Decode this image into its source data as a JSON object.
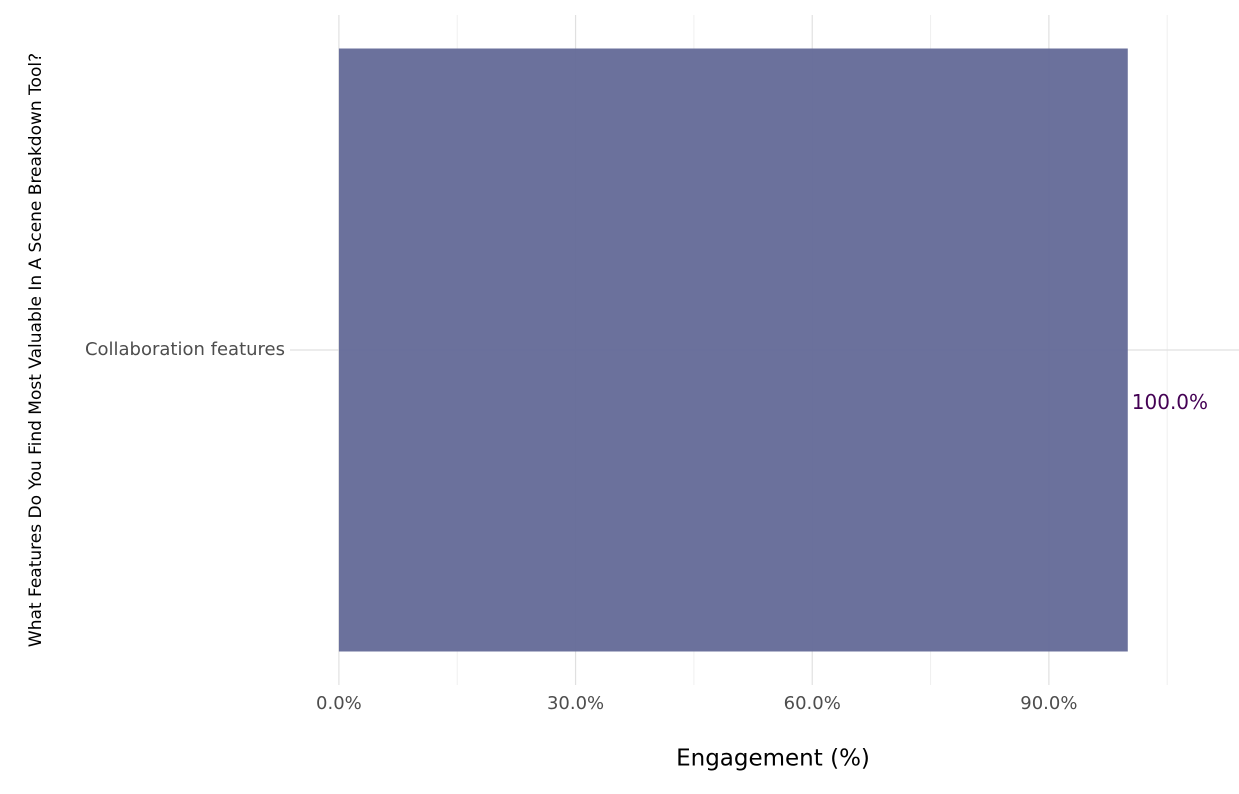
{
  "chart_data": {
    "type": "hbar",
    "xlabel": "Engagement (%)",
    "ylabel": "What Features Do You Find Most Valuable In A Scene Breakdown Tool?",
    "categories": [
      "Collaboration features"
    ],
    "values": [
      100
    ],
    "value_labels": [
      "100.0%"
    ],
    "color": "#666c99",
    "value_label_color": "#440154",
    "xlim": [
      -6.2,
      114.1
    ],
    "xticks": [
      {
        "value": 0,
        "label": "0.0%"
      },
      {
        "value": 30,
        "label": "30.0%"
      },
      {
        "value": 60,
        "label": "60.0%"
      },
      {
        "value": 90,
        "label": "90.0%"
      }
    ],
    "minor_xticks": [
      15,
      45,
      75,
      105
    ],
    "grid": true
  }
}
